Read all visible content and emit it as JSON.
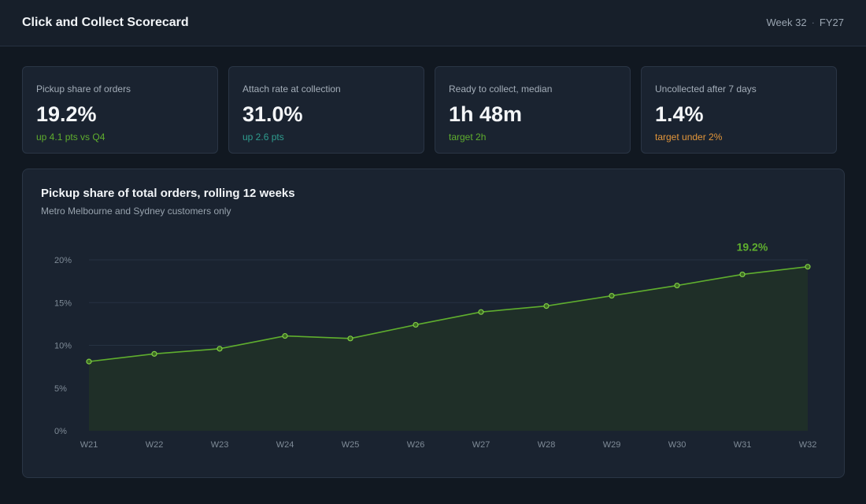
{
  "header": {
    "title": "Click and Collect Scorecard",
    "week": "Week 32",
    "separator": "·",
    "fiscal_year": "FY27"
  },
  "kpis": [
    {
      "label": "Pickup share of orders",
      "value": "19.2%",
      "delta": "up 4.1 pts vs Q4",
      "delta_color": "#5fae2e"
    },
    {
      "label": "Attach rate at collection",
      "value": "31.0%",
      "delta": "up 2.6 pts",
      "delta_color": "#2f9d8f"
    },
    {
      "label": "Ready to collect, median",
      "value": "1h 48m",
      "delta": "target 2h",
      "delta_color": "#5fae2e"
    },
    {
      "label": "Uncollected after 7 days",
      "value": "1.4%",
      "delta": "target under 2%",
      "delta_color": "#e3963a"
    }
  ],
  "chart_data": {
    "type": "area",
    "title": "Pickup share of total orders, rolling 12 weeks",
    "subtitle": "Metro Melbourne and Sydney customers only",
    "categories": [
      "W21",
      "W22",
      "W23",
      "W24",
      "W25",
      "W26",
      "W27",
      "W28",
      "W29",
      "W30",
      "W31",
      "W32"
    ],
    "values": [
      8.1,
      9.0,
      9.6,
      11.1,
      10.8,
      12.4,
      13.9,
      14.6,
      15.8,
      17.0,
      18.3,
      19.2
    ],
    "yticks": [
      "0%",
      "5%",
      "10%",
      "15%",
      "20%"
    ],
    "ylim": [
      0,
      20
    ],
    "last_value_label": "19.2%",
    "grid": true,
    "line_color": "#5fae2e",
    "fill_color": "#1f2f28"
  }
}
